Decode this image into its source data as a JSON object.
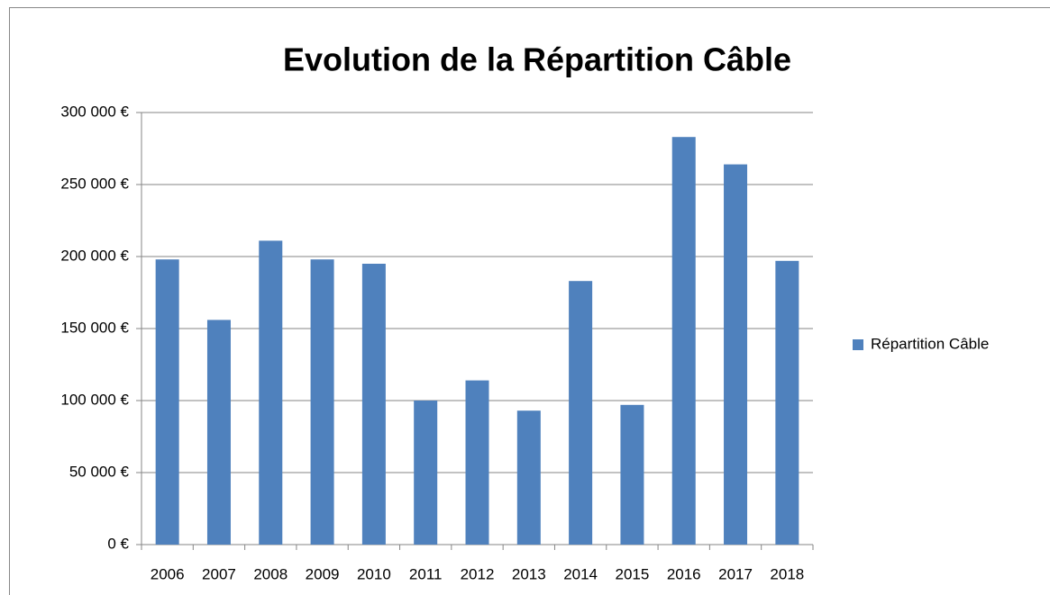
{
  "chart_data": {
    "type": "bar",
    "title": "Evolution de la Répartition Câble",
    "categories": [
      "2006",
      "2007",
      "2008",
      "2009",
      "2010",
      "2011",
      "2012",
      "2013",
      "2014",
      "2015",
      "2016",
      "2017",
      "2018"
    ],
    "series": [
      {
        "name": "Répartition Câble",
        "color": "#4f81bd",
        "values": [
          198000,
          156000,
          211000,
          198000,
          195000,
          100000,
          114000,
          93000,
          183000,
          97000,
          283000,
          264000,
          197000
        ]
      }
    ],
    "ylim": [
      0,
      300000
    ],
    "yticks": [
      {
        "value": 0,
        "label": "0 €"
      },
      {
        "value": 50000,
        "label": "50 000 €"
      },
      {
        "value": 100000,
        "label": "100 000 €"
      },
      {
        "value": 150000,
        "label": "150 000 €"
      },
      {
        "value": 200000,
        "label": "200 000 €"
      },
      {
        "value": 250000,
        "label": "250 000 €"
      },
      {
        "value": 300000,
        "label": "300 000 €"
      }
    ],
    "grid": true,
    "legend": "right"
  }
}
